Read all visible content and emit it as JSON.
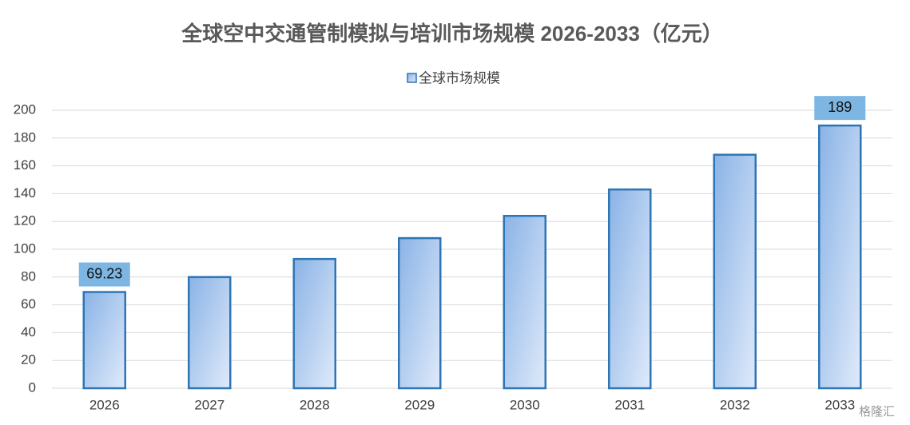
{
  "chart_data": {
    "type": "bar",
    "title": "全球空中交通管制模拟与培训市场规模 2026-2033（亿元）",
    "categories": [
      "2026",
      "2027",
      "2028",
      "2029",
      "2030",
      "2031",
      "2032",
      "2033"
    ],
    "series": [
      {
        "name": "全球市场规模",
        "color": "#2e75b6",
        "values": [
          69.23,
          80,
          93,
          108,
          124,
          143,
          168,
          189
        ],
        "value_labels": [
          "69.23",
          null,
          null,
          null,
          null,
          null,
          null,
          "189"
        ]
      }
    ],
    "ylim": [
      0,
      200
    ],
    "yticks": [
      0,
      20,
      40,
      60,
      80,
      100,
      120,
      140,
      160,
      180,
      200
    ],
    "grid": true,
    "legend": "top",
    "watermark": "格隆汇"
  }
}
